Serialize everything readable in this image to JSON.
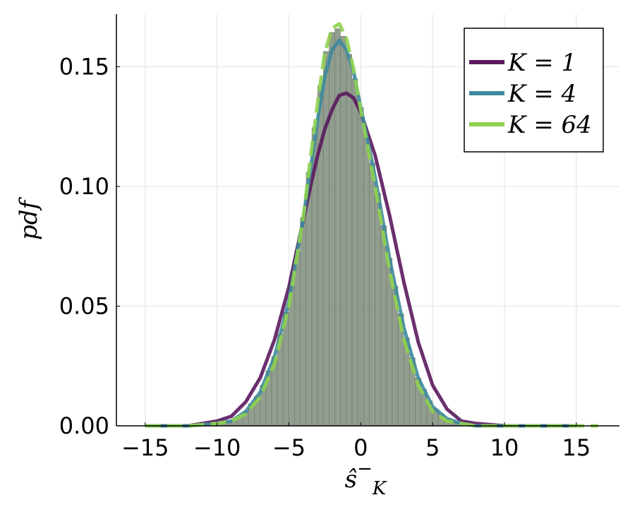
{
  "chart_data": {
    "type": "area",
    "xlabel": "ŝ⁻_K",
    "ylabel": "pdf",
    "xlim": [
      -17,
      18
    ],
    "ylim": [
      0,
      0.172
    ],
    "xticks": [
      -15,
      -10,
      -5,
      0,
      5,
      10,
      15
    ],
    "xtick_labels": [
      "−15",
      "−10",
      "−5",
      "0",
      "5",
      "10",
      "15"
    ],
    "yticks": [
      0.0,
      0.05,
      0.1,
      0.15
    ],
    "ytick_labels": [
      "0.00",
      "0.05",
      "0.10",
      "0.15"
    ],
    "grid": true,
    "legend_position": "top-right",
    "series": [
      {
        "name": "K = 1",
        "color": "#5a1a5e",
        "x": [
          -15,
          -12,
          -10,
          -9,
          -8,
          -7,
          -6,
          -5,
          -4,
          -3.5,
          -3,
          -2.5,
          -2,
          -1.5,
          -1,
          -0.5,
          0,
          1,
          2,
          3,
          4,
          5,
          6,
          7,
          8,
          10,
          12,
          15
        ],
        "values": [
          0.0,
          0.0,
          0.002,
          0.004,
          0.01,
          0.02,
          0.036,
          0.058,
          0.086,
          0.1,
          0.113,
          0.124,
          0.132,
          0.138,
          0.139,
          0.137,
          0.131,
          0.113,
          0.088,
          0.06,
          0.035,
          0.017,
          0.007,
          0.002,
          0.001,
          0.0,
          0.0,
          0.0
        ]
      },
      {
        "name": "K = 4",
        "color": "#3e8a9e",
        "x": [
          -15,
          -12,
          -10,
          -9,
          -8,
          -7,
          -6,
          -5,
          -4,
          -3.5,
          -3,
          -2.5,
          -2,
          -1.5,
          -1,
          -0.5,
          0,
          1,
          2,
          3,
          4,
          5,
          6,
          7,
          8,
          10,
          12,
          15
        ],
        "values": [
          0.0,
          0.0,
          0.001,
          0.002,
          0.006,
          0.014,
          0.029,
          0.052,
          0.087,
          0.107,
          0.128,
          0.146,
          0.157,
          0.161,
          0.157,
          0.148,
          0.133,
          0.104,
          0.07,
          0.041,
          0.02,
          0.008,
          0.003,
          0.001,
          0.0,
          0.0,
          0.0,
          0.0
        ]
      },
      {
        "name": "K = 64",
        "color": "#8fd14f",
        "x": [
          -15,
          -12,
          -10,
          -9,
          -8,
          -7,
          -6,
          -5,
          -4,
          -3.5,
          -3,
          -2.5,
          -2,
          -1.5,
          -1,
          -0.5,
          0,
          1,
          2,
          3,
          4,
          5,
          6,
          7,
          8,
          10,
          12,
          15,
          16.5
        ],
        "values": [
          0.0,
          0.0,
          0.001,
          0.002,
          0.005,
          0.012,
          0.026,
          0.05,
          0.087,
          0.112,
          0.135,
          0.156,
          0.166,
          0.168,
          0.162,
          0.149,
          0.132,
          0.1,
          0.065,
          0.036,
          0.017,
          0.006,
          0.002,
          0.001,
          0.0,
          0.0,
          0.0,
          0.0,
          0.0
        ]
      }
    ],
    "histogram": {
      "fill": "#7e8c7a",
      "opacity": 0.85
    }
  }
}
